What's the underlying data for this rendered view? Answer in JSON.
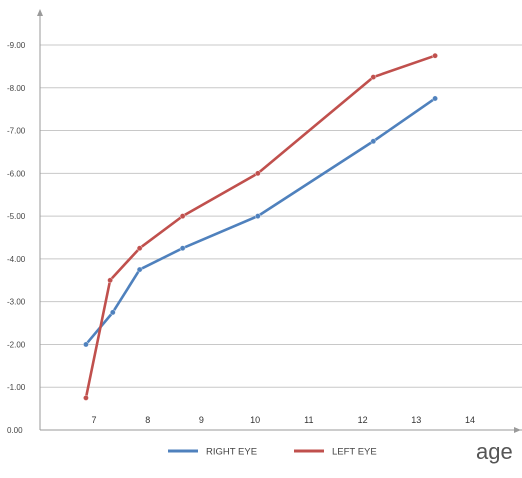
{
  "chart_data": {
    "type": "line",
    "xlabel": "age",
    "ylabel": "",
    "title": "",
    "xlim": [
      6.6,
      15.2
    ],
    "ylim": [
      0,
      10
    ],
    "x_ticks": [
      7,
      8,
      9,
      10,
      11,
      12,
      13,
      14
    ],
    "x_tick_labels": [
      "7",
      "8",
      "9",
      "10",
      "11",
      "12",
      "13",
      "14"
    ],
    "y_ticks": [
      0,
      1,
      2,
      3,
      4,
      5,
      6,
      7,
      8,
      9
    ],
    "y_tick_labels": [
      "0.00",
      "-1.00",
      "-2.00",
      "-3.00",
      "-4.00",
      "-5.00",
      "-6.00",
      "-7.00",
      "-8.00",
      "-9.00"
    ],
    "grid": "horizontal",
    "legend_position": "bottom",
    "series": [
      {
        "name": "RIGHT EYE",
        "color": "#4f81bd",
        "x": [
          6.85,
          7.35,
          7.85,
          8.65,
          10.05,
          12.2,
          13.35
        ],
        "y": [
          2.0,
          2.75,
          3.75,
          4.25,
          5.0,
          6.75,
          7.75
        ]
      },
      {
        "name": "LEFT EYE",
        "color": "#c0504d",
        "x": [
          6.85,
          7.3,
          7.85,
          8.65,
          10.05,
          12.2,
          13.35
        ],
        "y": [
          0.75,
          3.5,
          4.25,
          5.0,
          6.0,
          8.25,
          8.75
        ]
      }
    ]
  }
}
